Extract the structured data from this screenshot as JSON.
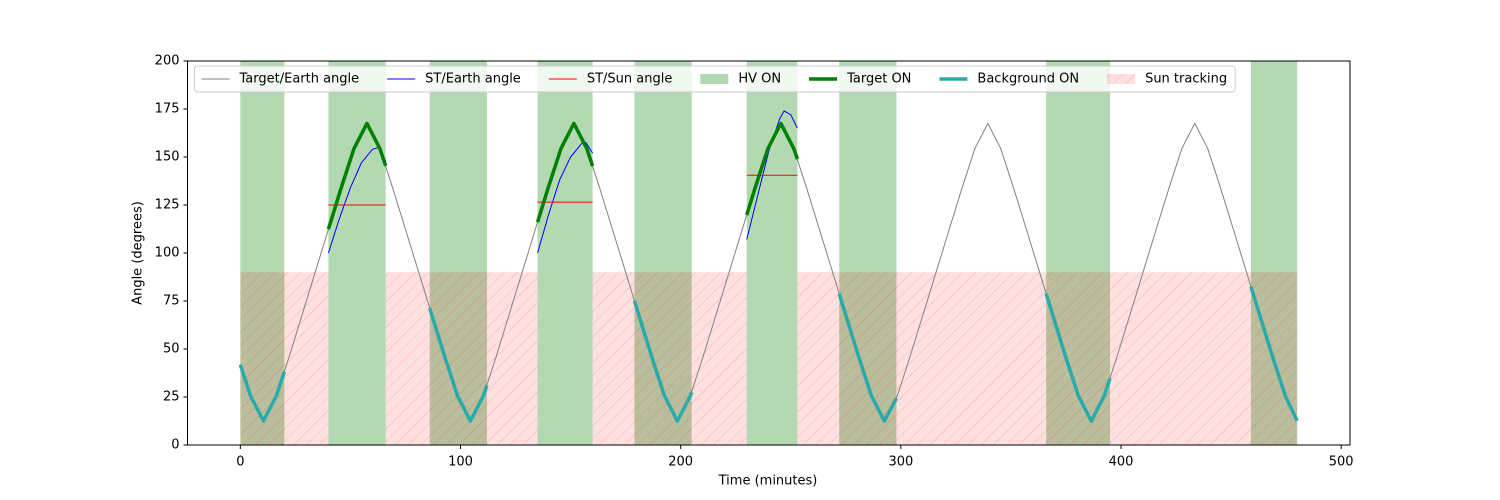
{
  "chart_data": {
    "type": "line",
    "xlabel": "Time (minutes)",
    "ylabel": "Angle (degrees)",
    "xlim": [
      -24,
      504
    ],
    "ylim": [
      0,
      200
    ],
    "xticks": [
      0,
      100,
      200,
      300,
      400,
      500
    ],
    "yticks": [
      0,
      25,
      50,
      75,
      100,
      125,
      150,
      175,
      200
    ],
    "legend": "upper left",
    "series": [
      {
        "name": "Target/Earth angle",
        "kind": "line",
        "color": "#808080",
        "width": 1,
        "x": [
          0,
          4.625,
          10.5,
          16.375,
          22.25,
          28.125,
          34,
          39.875,
          45.75,
          51.625,
          57.5,
          63.375,
          69.25,
          75.125,
          81,
          86.875,
          92.75,
          98.625,
          104.5,
          110.375,
          116.25,
          122.125,
          128,
          133.875,
          139.75,
          145.625,
          151.5,
          157.375,
          163.25,
          169.125,
          175,
          180.875,
          186.75,
          192.625,
          198.5,
          204.375,
          210.25,
          216.125,
          222,
          227.875,
          233.75,
          239.625,
          245.5,
          251.375,
          257.25,
          263.125,
          269,
          274.875,
          280.75,
          286.625,
          292.5,
          298.375,
          304.25,
          310.125,
          316,
          321.875,
          327.75,
          333.625,
          339.5,
          345.375,
          351.25,
          357.125,
          363,
          368.875,
          374.75,
          380.625,
          386.5,
          392.375,
          398.25,
          404.125,
          410,
          415.875,
          421.75,
          427.625,
          433.5,
          439.375,
          445.25,
          451.125,
          457,
          462.875,
          468.75,
          474.625,
          480
        ],
        "values": [
          41.8,
          25.6,
          12.5,
          25.6,
          46.3,
          68.1,
          90,
          111.9,
          133.7,
          154.4,
          167.5,
          154.4,
          133.7,
          111.9,
          90,
          68.1,
          46.3,
          25.6,
          12.5,
          25.6,
          46.3,
          68.1,
          90,
          111.9,
          133.7,
          154.4,
          167.5,
          154.4,
          133.7,
          111.9,
          90,
          68.1,
          46.3,
          25.6,
          12.5,
          25.6,
          46.3,
          68.1,
          90,
          111.9,
          133.7,
          154.4,
          167.5,
          154.4,
          133.7,
          111.9,
          90,
          68.1,
          46.3,
          25.6,
          12.5,
          25.6,
          46.3,
          68.1,
          90,
          111.9,
          133.7,
          154.4,
          167.5,
          154.4,
          133.7,
          111.9,
          90,
          68.1,
          46.3,
          25.6,
          12.5,
          25.6,
          46.3,
          68.1,
          90,
          111.9,
          133.7,
          154.4,
          167.5,
          154.4,
          133.7,
          111.9,
          90,
          68.1,
          46.3,
          25.6,
          12.6
        ]
      },
      {
        "name": "ST/Earth angle",
        "kind": "line",
        "color": "#0000ff",
        "width": 1,
        "x": [
          40,
          45,
          50,
          55,
          60,
          63,
          66,
          null,
          135,
          140,
          145,
          150,
          155,
          157,
          160,
          null,
          230,
          235,
          240,
          245,
          247,
          250,
          253
        ],
        "values": [
          100,
          118,
          134,
          147,
          154,
          155,
          148,
          null,
          100,
          120,
          138,
          150,
          157,
          157.5,
          152,
          null,
          107,
          130,
          153,
          170,
          174,
          172,
          165
        ]
      },
      {
        "name": "ST/Sun angle",
        "kind": "line",
        "color": "#ff0000",
        "width": 1,
        "x": [
          40,
          66,
          null,
          135,
          160,
          null,
          230,
          253
        ],
        "values": [
          125,
          125,
          null,
          126.5,
          126.5,
          null,
          140.5,
          140.5
        ]
      },
      {
        "name": "HV ON",
        "kind": "span",
        "color": "#008000",
        "alpha": 0.3,
        "intervals": [
          [
            0,
            20
          ],
          [
            40,
            66
          ],
          [
            86,
            112
          ],
          [
            135,
            160
          ],
          [
            179,
            205
          ],
          [
            230,
            253
          ],
          [
            272,
            298
          ],
          [
            366,
            395
          ],
          [
            459,
            480
          ]
        ]
      },
      {
        "name": "Target ON",
        "kind": "line",
        "color": "#008000",
        "width": 3.5,
        "x": [
          40,
          45.75,
          51.625,
          57.5,
          63.375,
          66,
          null,
          135,
          139.75,
          145.625,
          151.5,
          157.375,
          160,
          null,
          230,
          233.75,
          239.625,
          245.5,
          251.375,
          253
        ],
        "values": [
          112.4,
          133.7,
          154.4,
          167.5,
          154.4,
          145.4,
          null,
          116.1,
          133.7,
          154.4,
          167.5,
          154.4,
          145.3,
          null,
          119.8,
          133.7,
          154.4,
          167.5,
          154.4,
          148.9
        ]
      },
      {
        "name": "Background ON",
        "kind": "line",
        "color": "#2aabab",
        "width": 3.5,
        "x": [
          0,
          4.625,
          10.5,
          16.375,
          20,
          null,
          86,
          86.875,
          92.75,
          98.625,
          104.5,
          110.375,
          112,
          null,
          179,
          180.875,
          186.75,
          192.625,
          198.5,
          204.375,
          205,
          null,
          272,
          274.875,
          280.75,
          286.625,
          292.5,
          298,
          null,
          366,
          368.875,
          374.75,
          380.625,
          386.5,
          392.375,
          395,
          null,
          459,
          462.875,
          468.75,
          474.625,
          480
        ],
        "values": [
          41.8,
          25.6,
          12.5,
          25.6,
          38.2,
          null,
          71.3,
          68.1,
          46.3,
          25.6,
          12.5,
          25.6,
          31.1,
          null,
          75.1,
          68.1,
          46.3,
          25.6,
          12.5,
          25.6,
          27.5,
          null,
          78.8,
          68.1,
          46.3,
          25.6,
          12.5,
          24.4,
          null,
          78.8,
          68.1,
          46.3,
          25.6,
          12.5,
          25.6,
          34.7,
          null,
          82.5,
          68.1,
          46.3,
          25.6,
          12.6
        ]
      },
      {
        "name": "Sun tracking",
        "kind": "span",
        "color": "#ff0000",
        "alpha": 0.12,
        "hatch": true,
        "ymax": 90,
        "intervals": [
          [
            0,
            40
          ],
          [
            66,
            135
          ],
          [
            160,
            230
          ],
          [
            253,
            480
          ]
        ]
      }
    ]
  }
}
